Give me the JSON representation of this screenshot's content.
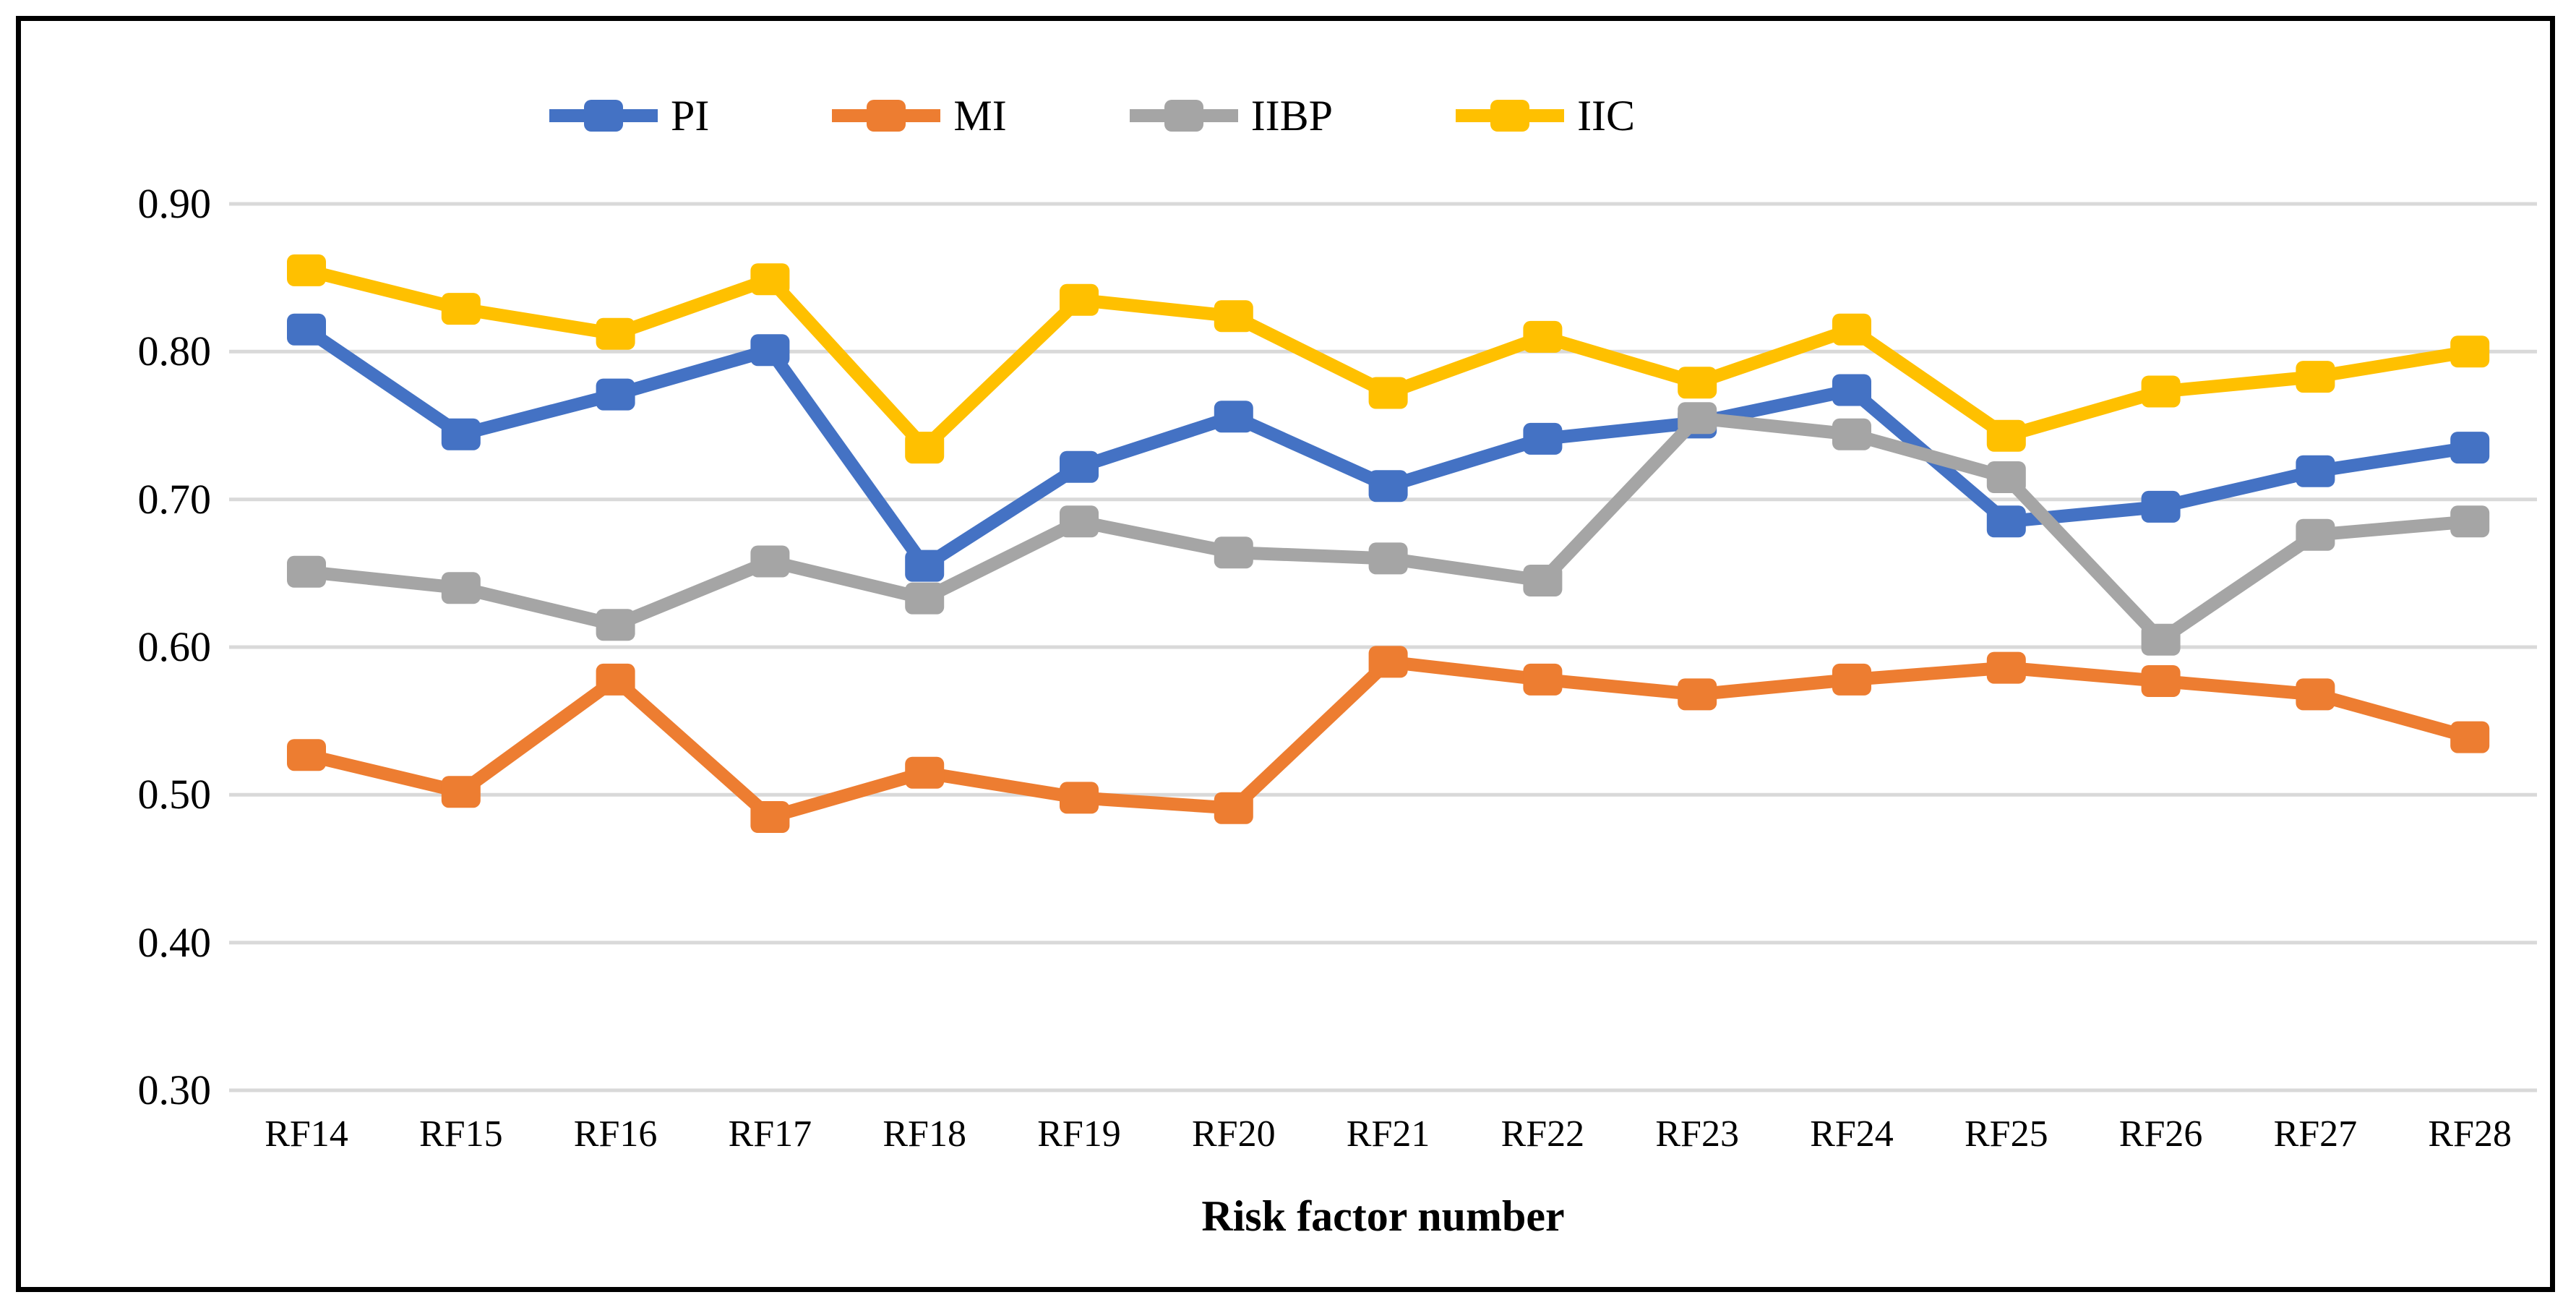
{
  "figure": {
    "background_color": "#ffffff",
    "border_color": "#000000"
  },
  "y_axis": {
    "tick_labels": [
      "0.90",
      "0.80",
      "0.70",
      "0.60",
      "0.50",
      "0.40",
      "0.30"
    ],
    "tick_values": [
      0.9,
      0.8,
      0.7,
      0.6,
      0.5,
      0.4,
      0.3
    ],
    "gridline_color": "#D9D9D9"
  },
  "x_axis": {
    "title": "Risk factor number"
  },
  "chart_data": {
    "type": "line",
    "title": "",
    "xlabel": "Risk factor number",
    "ylabel": "",
    "ylim": [
      0.3,
      0.9
    ],
    "grid": true,
    "legend_position": "top",
    "marker": "square",
    "categories": [
      "RF14",
      "RF15",
      "RF16",
      "RF17",
      "RF18",
      "RF19",
      "RF20",
      "RF21",
      "RF22",
      "RF23",
      "RF24",
      "RF25",
      "RF26",
      "RF27",
      "RF28"
    ],
    "series": [
      {
        "name": "PI",
        "color": "#4472C4",
        "values": [
          0.815,
          0.744,
          0.771,
          0.801,
          0.655,
          0.722,
          0.756,
          0.709,
          0.741,
          0.752,
          0.774,
          0.685,
          0.695,
          0.719,
          0.735
        ]
      },
      {
        "name": "MI",
        "color": "#ED7D31",
        "values": [
          0.527,
          0.502,
          0.578,
          0.485,
          0.515,
          0.498,
          0.491,
          0.59,
          0.578,
          0.568,
          0.578,
          0.586,
          0.577,
          0.568,
          0.539
        ]
      },
      {
        "name": "IIBP",
        "color": "#A5A5A5",
        "values": [
          0.651,
          0.64,
          0.615,
          0.658,
          0.633,
          0.685,
          0.664,
          0.66,
          0.645,
          0.755,
          0.744,
          0.715,
          0.605,
          0.676,
          0.685
        ]
      },
      {
        "name": "IIC",
        "color": "#FFC000",
        "values": [
          0.855,
          0.829,
          0.812,
          0.849,
          0.735,
          0.835,
          0.824,
          0.772,
          0.81,
          0.779,
          0.815,
          0.743,
          0.773,
          0.783,
          0.8
        ]
      }
    ]
  }
}
